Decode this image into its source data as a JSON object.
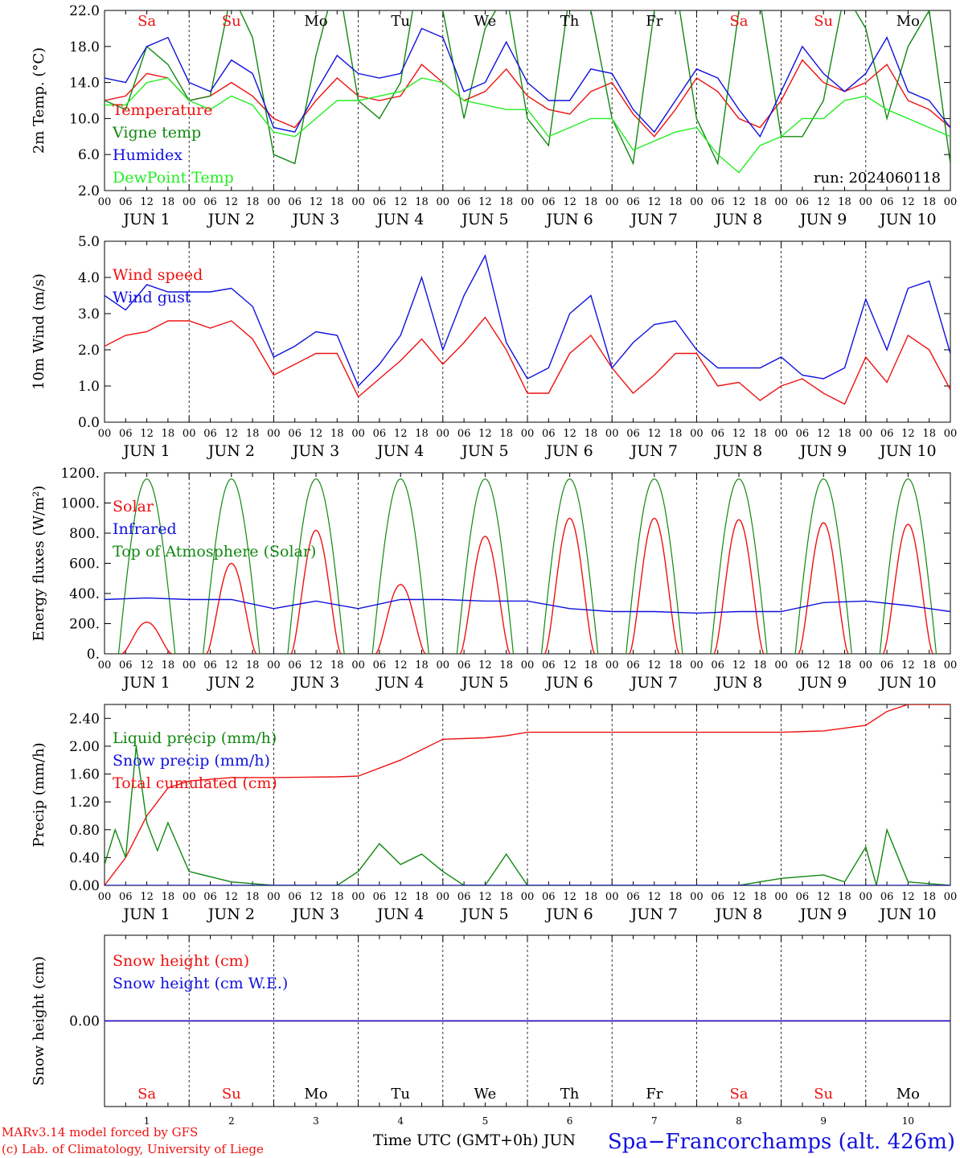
{
  "chart_data": [
    {
      "type": "line",
      "ylabel": "2m Temp. (°C)",
      "yticks": [
        "22.0",
        "18.0",
        "14.0",
        "10.0",
        "6.0",
        "2.0"
      ],
      "ylim": [
        2,
        22
      ],
      "x_hours": [
        0,
        240
      ],
      "legend": [
        {
          "name": "Temperature",
          "color": "#ee1111"
        },
        {
          "name": "Vigne temp",
          "color": "#118811"
        },
        {
          "name": "Humidex",
          "color": "#1111dd"
        },
        {
          "name": "DewPoint Temp",
          "color": "#22ee22"
        }
      ],
      "annotation": "run: 2024060118",
      "day_names": [
        "Sa",
        "Su",
        "Mo",
        "Tu",
        "We",
        "Th",
        "Fr",
        "Sa",
        "Su",
        "Mo"
      ],
      "day_colors": [
        "#ee1111",
        "#ee1111",
        "#000000",
        "#000000",
        "#000000",
        "#000000",
        "#000000",
        "#ee1111",
        "#ee1111",
        "#000000"
      ],
      "series": [
        {
          "name": "Temperature",
          "color": "#ee1111",
          "x": [
            0,
            6,
            12,
            18,
            24,
            30,
            36,
            42,
            48,
            54,
            60,
            66,
            72,
            78,
            84,
            90,
            96,
            102,
            108,
            114,
            120,
            126,
            132,
            138,
            144,
            150,
            156,
            162,
            168,
            174,
            180,
            186,
            192,
            198,
            204,
            210,
            216,
            222,
            228,
            234,
            240
          ],
          "y": [
            12,
            12.5,
            15,
            14.5,
            12,
            12.5,
            14,
            12.5,
            10,
            9,
            12,
            14.5,
            12.5,
            12,
            12.5,
            16,
            14,
            12,
            13,
            15.5,
            12.5,
            11,
            10.5,
            13,
            14,
            10.5,
            8,
            11,
            14.5,
            13,
            10,
            9,
            12,
            16.5,
            14,
            13,
            14,
            16,
            12,
            11,
            9
          ]
        },
        {
          "name": "Vigne temp",
          "color": "#118811",
          "x": [
            0,
            6,
            12,
            18,
            24,
            30,
            36,
            42,
            48,
            54,
            60,
            66,
            72,
            78,
            84,
            90,
            96,
            102,
            108,
            114,
            120,
            126,
            132,
            138,
            144,
            150,
            156,
            162,
            168,
            174,
            180,
            186,
            192,
            198,
            204,
            210,
            216,
            222,
            228,
            234,
            240
          ],
          "y": [
            12,
            11,
            18,
            16,
            12,
            12.5,
            24,
            19,
            6,
            5,
            17,
            26,
            12,
            10,
            14,
            28,
            22,
            10,
            20,
            24,
            10,
            7,
            24,
            22,
            10,
            5,
            22,
            25,
            10,
            5,
            22,
            23,
            8,
            8,
            12,
            24,
            20,
            10,
            18,
            22,
            5
          ]
        },
        {
          "name": "Humidex",
          "color": "#1111dd",
          "x": [
            0,
            6,
            12,
            18,
            24,
            30,
            36,
            42,
            48,
            54,
            60,
            66,
            72,
            78,
            84,
            90,
            96,
            102,
            108,
            114,
            120,
            126,
            132,
            138,
            144,
            150,
            156,
            162,
            168,
            174,
            180,
            186,
            192,
            198,
            204,
            210,
            216,
            222,
            228,
            234,
            240
          ],
          "y": [
            14.5,
            14,
            18,
            19,
            14,
            13,
            16.5,
            15,
            9,
            8.5,
            13,
            17,
            15,
            14.5,
            15,
            20,
            19,
            13,
            14,
            18.5,
            14,
            12,
            12,
            15.5,
            15,
            11,
            8.5,
            12,
            15.5,
            14.5,
            11,
            8,
            13,
            18,
            15,
            13,
            15,
            19,
            13,
            12,
            9
          ]
        },
        {
          "name": "DewPoint Temp",
          "color": "#22ee22",
          "x": [
            0,
            6,
            12,
            18,
            24,
            30,
            36,
            42,
            48,
            54,
            60,
            66,
            72,
            78,
            84,
            90,
            96,
            102,
            108,
            114,
            120,
            126,
            132,
            138,
            144,
            150,
            156,
            162,
            168,
            174,
            180,
            186,
            192,
            198,
            204,
            210,
            216,
            222,
            228,
            234,
            240
          ],
          "y": [
            11.5,
            11.5,
            14,
            14.5,
            12,
            11,
            12.5,
            11.5,
            8.5,
            8,
            10,
            12,
            12,
            12.5,
            13,
            14.5,
            14,
            12,
            11.5,
            11,
            11,
            8,
            9,
            10,
            10,
            6.5,
            7.5,
            8.5,
            9,
            6,
            4,
            7,
            8,
            10,
            10,
            12,
            12.5,
            11,
            10,
            9,
            8
          ]
        }
      ]
    },
    {
      "type": "line",
      "ylabel": "10m Wind (m/s)",
      "yticks": [
        "5.0",
        "4.0",
        "3.0",
        "2.0",
        "1.0",
        "0.0"
      ],
      "ylim": [
        0,
        5
      ],
      "x_hours": [
        0,
        240
      ],
      "legend": [
        {
          "name": "Wind speed",
          "color": "#ee1111"
        },
        {
          "name": "Wind gust",
          "color": "#1111dd"
        }
      ],
      "series": [
        {
          "name": "Wind speed",
          "color": "#ee1111",
          "x": [
            0,
            6,
            12,
            18,
            24,
            30,
            36,
            42,
            48,
            54,
            60,
            66,
            72,
            78,
            84,
            90,
            96,
            102,
            108,
            114,
            120,
            126,
            132,
            138,
            144,
            150,
            156,
            162,
            168,
            174,
            180,
            186,
            192,
            198,
            204,
            210,
            216,
            222,
            228,
            234,
            240
          ],
          "y": [
            2.1,
            2.4,
            2.5,
            2.8,
            2.8,
            2.6,
            2.8,
            2.3,
            1.3,
            1.6,
            1.9,
            1.9,
            0.7,
            1.2,
            1.7,
            2.3,
            1.6,
            2.2,
            2.9,
            2,
            0.8,
            0.8,
            1.9,
            2.4,
            1.5,
            0.8,
            1.3,
            1.9,
            1.9,
            1,
            1.1,
            0.6,
            1,
            1.2,
            0.8,
            0.5,
            1.8,
            1.1,
            2.4,
            2,
            0.9
          ]
        },
        {
          "name": "Wind gust",
          "color": "#1111dd",
          "x": [
            0,
            6,
            12,
            18,
            24,
            30,
            36,
            42,
            48,
            54,
            60,
            66,
            72,
            78,
            84,
            90,
            96,
            102,
            108,
            114,
            120,
            126,
            132,
            138,
            144,
            150,
            156,
            162,
            168,
            174,
            180,
            186,
            192,
            198,
            204,
            210,
            216,
            222,
            228,
            234,
            240
          ],
          "y": [
            3.5,
            3.1,
            3.8,
            3.6,
            3.6,
            3.6,
            3.7,
            3.2,
            1.8,
            2.1,
            2.5,
            2.4,
            1,
            1.6,
            2.4,
            4,
            2,
            3.5,
            4.6,
            2.2,
            1.2,
            1.5,
            3,
            3.5,
            1.5,
            2.2,
            2.7,
            2.8,
            2,
            1.5,
            1.5,
            1.5,
            1.8,
            1.3,
            1.2,
            1.5,
            3.4,
            2,
            3.7,
            3.9,
            1.9
          ]
        }
      ]
    },
    {
      "type": "line",
      "ylabel": "Energy fluxes (W/m²)",
      "yticks": [
        "1200.",
        "1000.",
        "800.",
        "600.",
        "400.",
        "200.",
        "0."
      ],
      "ylim": [
        0,
        1200
      ],
      "x_hours": [
        0,
        240
      ],
      "legend": [
        {
          "name": "Solar",
          "color": "#ee1111"
        },
        {
          "name": "Infrared",
          "color": "#1111dd"
        },
        {
          "name": "Top of Atmosphere (Solar)",
          "color": "#118811"
        }
      ],
      "toa_peak": 1160,
      "solar_peaks": [
        210,
        600,
        820,
        460,
        780,
        900,
        900,
        890,
        870,
        860
      ],
      "series": [
        {
          "name": "Infrared",
          "color": "#1111dd",
          "x": [
            0,
            12,
            24,
            36,
            48,
            60,
            72,
            84,
            96,
            108,
            120,
            132,
            144,
            156,
            168,
            180,
            192,
            204,
            216,
            228,
            240
          ],
          "y": [
            360,
            370,
            360,
            360,
            300,
            350,
            300,
            360,
            360,
            350,
            350,
            300,
            280,
            280,
            270,
            280,
            280,
            340,
            350,
            320,
            280
          ]
        }
      ]
    },
    {
      "type": "line",
      "ylabel": "Precip (mm/h)",
      "yticks": [
        "2.40",
        "2.00",
        "1.60",
        "1.20",
        "0.80",
        "0.40",
        "0.00"
      ],
      "ylim": [
        0,
        2.6
      ],
      "x_hours": [
        0,
        240
      ],
      "legend": [
        {
          "name": "Liquid precip (mm/h)",
          "color": "#118811"
        },
        {
          "name": "Snow precip (mm/h)",
          "color": "#1111dd"
        },
        {
          "name": "Total cumulated (cm)",
          "color": "#ee1111"
        }
      ],
      "series": [
        {
          "name": "Total cumulated (cm)",
          "color": "#ee1111",
          "x": [
            0,
            6,
            12,
            18,
            24,
            36,
            48,
            66,
            72,
            84,
            96,
            108,
            114,
            120,
            144,
            168,
            192,
            204,
            216,
            222,
            228,
            240
          ],
          "y": [
            0,
            0.4,
            1,
            1.4,
            1.5,
            1.55,
            1.55,
            1.56,
            1.57,
            1.8,
            2.1,
            2.12,
            2.15,
            2.2,
            2.2,
            2.2,
            2.2,
            2.22,
            2.3,
            2.5,
            2.6,
            2.6
          ]
        },
        {
          "name": "Liquid precip (mm/h)",
          "color": "#118811",
          "x": [
            0,
            3,
            6,
            9,
            12,
            15,
            18,
            24,
            36,
            48,
            66,
            72,
            78,
            84,
            90,
            96,
            102,
            108,
            114,
            120,
            180,
            192,
            204,
            210,
            216,
            219,
            222,
            228,
            240
          ],
          "y": [
            0.3,
            0.8,
            0.4,
            2,
            0.9,
            0.5,
            0.9,
            0.2,
            0.05,
            0,
            0,
            0.2,
            0.6,
            0.3,
            0.45,
            0.2,
            0,
            0,
            0.45,
            0,
            0,
            0.1,
            0.15,
            0.05,
            0.55,
            0,
            0.8,
            0.05,
            0
          ]
        },
        {
          "name": "Snow precip (mm/h)",
          "color": "#1111dd",
          "x": [
            0,
            240
          ],
          "y": [
            0,
            0
          ]
        }
      ]
    },
    {
      "type": "line",
      "ylabel": "Snow height (cm)",
      "yticks": [
        "0.00"
      ],
      "ylim": [
        -1,
        1
      ],
      "x_hours": [
        0,
        240
      ],
      "legend": [
        {
          "name": "Snow height (cm)",
          "color": "#ee1111"
        },
        {
          "name": "Snow height (cm W.E.)",
          "color": "#1111dd"
        }
      ],
      "series": [
        {
          "name": "Snow height (cm)",
          "color": "#ee1111",
          "x": [
            0,
            240
          ],
          "y": [
            0,
            0
          ]
        },
        {
          "name": "Snow height (cm W.E.)",
          "color": "#1111dd",
          "x": [
            0,
            240
          ],
          "y": [
            0,
            0
          ]
        }
      ],
      "day_numbers": [
        "1",
        "2",
        "3",
        "4",
        "5",
        "6",
        "7",
        "8",
        "9",
        "10"
      ],
      "xlabel": "Time UTC (GMT+0h) JUN"
    }
  ],
  "axis": {
    "hour_labels": [
      "00",
      "06",
      "12",
      "18"
    ],
    "end_label": "00",
    "day_labels": [
      "JUN  1",
      "JUN  2",
      "JUN  3",
      "JUN  4",
      "JUN  5",
      "JUN  6",
      "JUN  7",
      "JUN  8",
      "JUN  9",
      "JUN 10"
    ]
  },
  "footer": {
    "model": "MARv3.14 model forced by GFS",
    "credit": "(c) Lab. of Climatology, University of Liege",
    "station": "Spa−Francorchamps (alt. 426m)"
  }
}
